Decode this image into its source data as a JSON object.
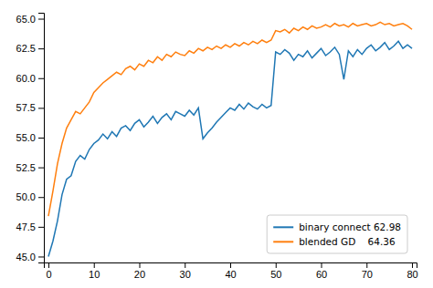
{
  "chart_data": {
    "type": "line",
    "x": [
      0,
      1,
      2,
      3,
      4,
      5,
      6,
      7,
      8,
      9,
      10,
      11,
      12,
      13,
      14,
      15,
      16,
      17,
      18,
      19,
      20,
      21,
      22,
      23,
      24,
      25,
      26,
      27,
      28,
      29,
      30,
      31,
      32,
      33,
      34,
      35,
      36,
      37,
      38,
      39,
      40,
      41,
      42,
      43,
      44,
      45,
      46,
      47,
      48,
      49,
      50,
      51,
      52,
      53,
      54,
      55,
      56,
      57,
      58,
      59,
      60,
      61,
      62,
      63,
      64,
      65,
      66,
      67,
      68,
      69,
      70,
      71,
      72,
      73,
      74,
      75,
      76,
      77,
      78,
      79,
      80
    ],
    "series": [
      {
        "name": "binary connect 62.98",
        "color": "#1f77b4",
        "values": [
          45.0,
          46.3,
          48.0,
          50.2,
          51.5,
          51.8,
          53.0,
          53.5,
          53.2,
          54.0,
          54.5,
          54.8,
          55.3,
          54.9,
          55.5,
          55.1,
          55.8,
          56.0,
          55.6,
          56.2,
          56.5,
          55.9,
          56.3,
          56.8,
          56.2,
          56.7,
          57.0,
          56.5,
          57.2,
          57.0,
          56.8,
          57.3,
          56.9,
          57.5,
          54.9,
          55.4,
          55.8,
          56.3,
          56.7,
          57.1,
          57.5,
          57.3,
          57.8,
          57.4,
          57.9,
          57.6,
          57.4,
          57.8,
          57.5,
          57.7,
          62.2,
          62.0,
          62.4,
          62.1,
          61.5,
          62.0,
          61.8,
          62.3,
          61.7,
          62.1,
          62.5,
          61.9,
          62.2,
          62.6,
          62.0,
          59.9,
          62.3,
          61.8,
          62.4,
          62.0,
          62.5,
          62.8,
          62.3,
          62.6,
          63.0,
          62.4,
          62.7,
          63.1,
          62.5,
          62.8,
          62.5
        ]
      },
      {
        "name": "blended GD    64.36",
        "color": "#ff7f0e",
        "values": [
          48.4,
          50.5,
          52.8,
          54.5,
          55.8,
          56.5,
          57.2,
          57.0,
          57.5,
          58.0,
          58.8,
          59.2,
          59.6,
          59.9,
          60.2,
          60.5,
          60.3,
          60.8,
          61.0,
          60.7,
          61.2,
          61.0,
          61.5,
          61.3,
          61.8,
          61.5,
          62.0,
          61.8,
          62.2,
          62.0,
          61.9,
          62.3,
          62.1,
          62.5,
          62.3,
          62.6,
          62.4,
          62.7,
          62.5,
          62.8,
          62.6,
          62.9,
          62.7,
          63.0,
          62.8,
          63.1,
          62.9,
          63.2,
          63.0,
          63.2,
          64.0,
          63.9,
          64.1,
          63.8,
          64.2,
          64.0,
          64.3,
          64.1,
          64.4,
          64.2,
          64.3,
          64.5,
          64.3,
          64.6,
          64.4,
          64.5,
          64.3,
          64.6,
          64.4,
          64.5,
          64.6,
          64.4,
          64.5,
          64.7,
          64.5,
          64.6,
          64.4,
          64.5,
          64.6,
          64.4,
          64.1
        ]
      }
    ],
    "xlim": [
      -1,
      81
    ],
    "xticks": [
      0,
      10,
      20,
      30,
      40,
      50,
      60,
      70,
      80
    ],
    "ylim": [
      44.5,
      65.5
    ],
    "yticks": [
      {
        "value": 45,
        "label": "45.0"
      },
      47.5,
      {
        "value": 50,
        "label": "50.0"
      },
      52.5,
      {
        "value": 55,
        "label": "55.0"
      },
      57.5,
      {
        "value": 60,
        "label": "60.0"
      },
      62.5,
      {
        "value": 65,
        "label": "65.0"
      }
    ],
    "grid": false,
    "legend": "lower right"
  }
}
